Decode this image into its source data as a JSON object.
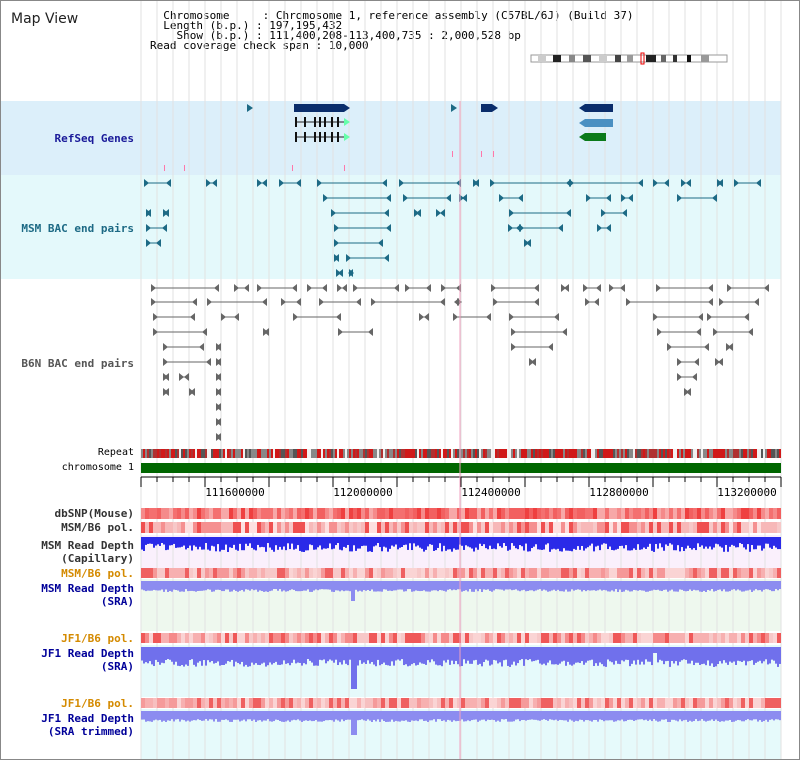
{
  "page": {
    "title": "Map View",
    "info": {
      "chromosome_key": "Chromosome",
      "chromosome_value": "Chromosome 1, reference assembly (C57BL/6J) (Build 37)",
      "length_key": "Length (b.p.)",
      "length_value": "197,195,432",
      "show_key": "Show (b.p.)",
      "show_value": "111,400,208-113,400,735 : 2,000,528 bp",
      "coverage_key": "Read coverage check span",
      "coverage_value": "10,000"
    }
  },
  "tracks": {
    "refseq_genes": {
      "label": "RefSeq Genes",
      "color": "#1a1a99"
    },
    "msm_bac": {
      "label": "MSM BAC end pairs",
      "color": "#1d6a85"
    },
    "b6n_bac": {
      "label": "B6N BAC end pairs",
      "color": "#555555"
    },
    "repeat": {
      "label": "Repeat"
    },
    "chromosome": {
      "label": "chromosome 1",
      "color": "#006600"
    },
    "dbsnp": {
      "label": "dbSNP(Mouse)",
      "color": "#333333"
    },
    "msm_b6_pol_1": {
      "label": "MSM/B6 pol.",
      "color": "#333333"
    },
    "msm_depth_cap": {
      "label_line1": "MSM Read Depth",
      "label_line2": "(Capillary)",
      "color": "#333333"
    },
    "msm_b6_pol_2": {
      "label": "MSM/B6 pol.",
      "color": "#d48a00"
    },
    "msm_depth_sra": {
      "label_line1": "MSM Read Depth",
      "label_line2": "(SRA)",
      "color": "#000099"
    },
    "jf1_b6_pol_1": {
      "label": "JF1/B6 pol.",
      "color": "#d48a00"
    },
    "jf1_depth_sra": {
      "label_line1": "JF1 Read Depth",
      "label_line2": "(SRA)",
      "color": "#000099"
    },
    "jf1_b6_pol_2": {
      "label": "JF1/B6 pol.",
      "color": "#d48a00"
    },
    "jf1_depth_trim": {
      "label_line1": "JF1 Read Depth",
      "label_line2": "(SRA trimmed)",
      "color": "#000099"
    }
  },
  "axis": {
    "ticks": [
      "111600000",
      "112000000",
      "112400000",
      "112800000",
      "113200000"
    ]
  }
}
